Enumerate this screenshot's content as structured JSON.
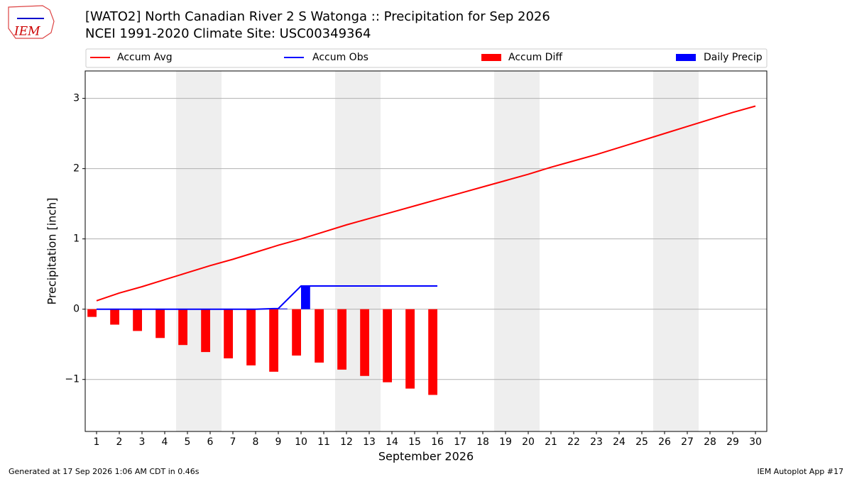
{
  "chart_data": {
    "type": "combo",
    "logo": "IEM",
    "title": "[WATO2] North Canadian River 2 S Watonga :: Precipitation for Sep 2026",
    "subtitle": "NCEI 1991-2020 Climate Site: USC00349364",
    "x_label": "September 2026",
    "y_label": "Precipitation [inch]",
    "footer_left": "Generated at 17 Sep 2026 1:06 AM CDT in 0.46s",
    "footer_right": "IEM Autoplot App #17",
    "x": [
      1,
      2,
      3,
      4,
      5,
      6,
      7,
      8,
      9,
      10,
      11,
      12,
      13,
      14,
      15,
      16,
      17,
      18,
      19,
      20,
      21,
      22,
      23,
      24,
      25,
      26,
      27,
      28,
      29,
      30
    ],
    "xlim": [
      0.5,
      30.5
    ],
    "xticks": [
      1,
      2,
      3,
      4,
      5,
      6,
      7,
      8,
      9,
      10,
      11,
      12,
      13,
      14,
      15,
      16,
      17,
      18,
      19,
      20,
      21,
      22,
      23,
      24,
      25,
      26,
      27,
      28,
      29,
      30
    ],
    "ylim": [
      -1.74,
      3.39
    ],
    "yticks": [
      {
        "value": -1,
        "label": "−1"
      },
      0,
      1,
      2,
      3
    ],
    "grid": true,
    "shaded_ranges": [
      [
        4.5,
        6.5
      ],
      [
        11.5,
        13.5
      ],
      [
        18.5,
        20.5
      ],
      [
        25.5,
        27.5
      ]
    ],
    "series": [
      {
        "name": "Accum Avg",
        "type": "line",
        "color": "#ff0000",
        "values": [
          0.12,
          0.23,
          0.32,
          0.42,
          0.52,
          0.62,
          0.71,
          0.81,
          0.91,
          1.0,
          1.1,
          1.2,
          1.29,
          1.38,
          1.47,
          1.56,
          1.65,
          1.74,
          1.83,
          1.92,
          2.02,
          2.11,
          2.2,
          2.3,
          2.4,
          2.5,
          2.6,
          2.7,
          2.8,
          2.89
        ]
      },
      {
        "name": "Accum Obs",
        "type": "line",
        "color": "#0000ff",
        "values": [
          0,
          0,
          0,
          0,
          0,
          0,
          0,
          0,
          0.01,
          0.33,
          0.33,
          0.33,
          0.33,
          0.33,
          0.33,
          0.33,
          null,
          null,
          null,
          null,
          null,
          null,
          null,
          null,
          null,
          null,
          null,
          null,
          null,
          null
        ]
      },
      {
        "name": "Accum Diff",
        "type": "bar",
        "offset": "left",
        "color": "#ff0000",
        "values": [
          -0.11,
          -0.22,
          -0.31,
          -0.41,
          -0.51,
          -0.61,
          -0.7,
          -0.8,
          -0.89,
          -0.66,
          -0.76,
          -0.86,
          -0.95,
          -1.04,
          -1.13,
          -1.22,
          null,
          null,
          null,
          null,
          null,
          null,
          null,
          null,
          null,
          null,
          null,
          null,
          null,
          null
        ]
      },
      {
        "name": "Daily Precip",
        "type": "bar",
        "offset": "right",
        "color": "#0000ff",
        "values": [
          0,
          0,
          0,
          0,
          0,
          0,
          0,
          0,
          0.01,
          0.33,
          0,
          0,
          0,
          0,
          0,
          0,
          null,
          null,
          null,
          null,
          null,
          null,
          null,
          null,
          null,
          null,
          null,
          null,
          null,
          null
        ]
      }
    ]
  }
}
